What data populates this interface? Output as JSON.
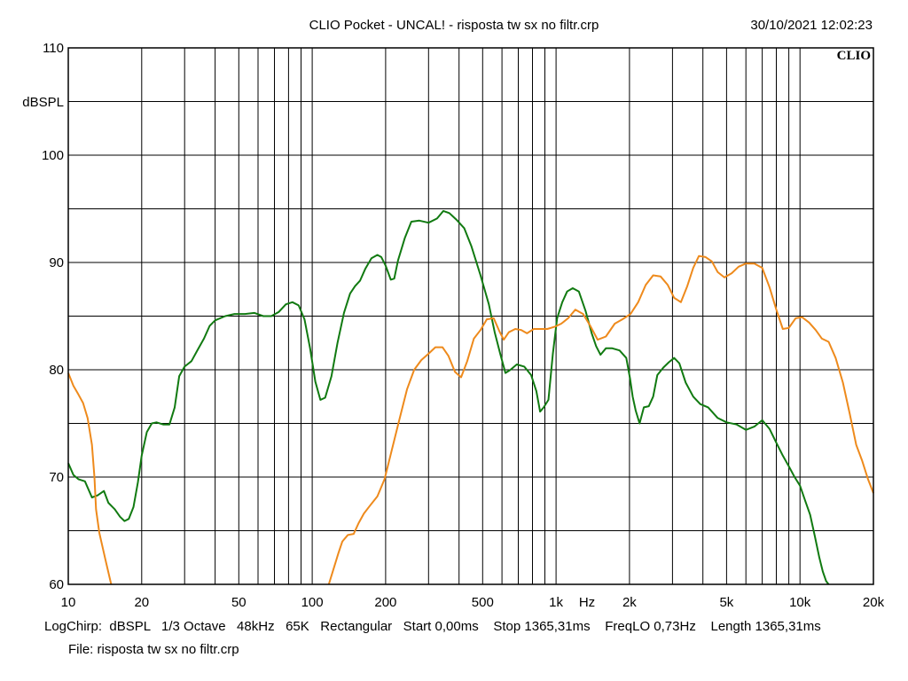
{
  "header": {
    "title": "CLIO Pocket - UNCAL! - risposta tw sx no filtr.crp",
    "datetime": "30/10/2021 12:02:23",
    "logo": "CLIO"
  },
  "footer": {
    "settings": "LogChirp:  dBSPL   1/3 Octave   48kHz   65K   Rectangular   Start 0,00ms    Stop 1365,31ms    FreqLO 0,73Hz    Length 1365,31ms",
    "file": "File: risposta tw sx no filtr.crp"
  },
  "chart_data": {
    "type": "line",
    "title": "CLIO Pocket - UNCAL! - risposta tw sx no filtr.crp",
    "xlabel": "Hz",
    "ylabel": "dBSPL",
    "x_scale": "log",
    "xlim": [
      10,
      20000
    ],
    "ylim": [
      60,
      110
    ],
    "grid": true,
    "x_ticks": [
      {
        "value": 10,
        "label": "10"
      },
      {
        "value": 20,
        "label": "20"
      },
      {
        "value": 50,
        "label": "50"
      },
      {
        "value": 100,
        "label": "100"
      },
      {
        "value": 200,
        "label": "200"
      },
      {
        "value": 500,
        "label": "500"
      },
      {
        "value": 1000,
        "label": "1k"
      },
      {
        "value": 2000,
        "label": "2k"
      },
      {
        "value": 5000,
        "label": "5k"
      },
      {
        "value": 10000,
        "label": "10k"
      },
      {
        "value": 20000,
        "label": "20k"
      }
    ],
    "y_ticks": [
      {
        "value": 110,
        "label": "110"
      },
      {
        "value": 100,
        "label": "100"
      },
      {
        "value": 90,
        "label": "90"
      },
      {
        "value": 80,
        "label": "80"
      },
      {
        "value": 70,
        "label": "70"
      },
      {
        "value": 60,
        "label": "60"
      }
    ],
    "series": [
      {
        "color": "#117a11",
        "points": [
          [
            10,
            71.3
          ],
          [
            10.5,
            70.2
          ],
          [
            11,
            69.8
          ],
          [
            11.7,
            69.6
          ],
          [
            12.5,
            68.1
          ],
          [
            13.2,
            68.3
          ],
          [
            14,
            68.7
          ],
          [
            14.6,
            67.6
          ],
          [
            15.5,
            67
          ],
          [
            16.3,
            66.3
          ],
          [
            17,
            65.9
          ],
          [
            17.7,
            66.1
          ],
          [
            18.5,
            67.2
          ],
          [
            19.3,
            69.5
          ],
          [
            20,
            72
          ],
          [
            21,
            74.2
          ],
          [
            22,
            75
          ],
          [
            23,
            75.1
          ],
          [
            24.5,
            74.9
          ],
          [
            26,
            74.9
          ],
          [
            27.3,
            76.5
          ],
          [
            28.5,
            79.4
          ],
          [
            30,
            80.3
          ],
          [
            32,
            80.8
          ],
          [
            34,
            81.9
          ],
          [
            36,
            82.9
          ],
          [
            38,
            84.1
          ],
          [
            40,
            84.6
          ],
          [
            44,
            85
          ],
          [
            48,
            85.2
          ],
          [
            53,
            85.2
          ],
          [
            58,
            85.3
          ],
          [
            63,
            85
          ],
          [
            68,
            85
          ],
          [
            73,
            85.4
          ],
          [
            78,
            86.1
          ],
          [
            83,
            86.3
          ],
          [
            88,
            86
          ],
          [
            93,
            84.7
          ],
          [
            98,
            82
          ],
          [
            103,
            78.9
          ],
          [
            108,
            77.2
          ],
          [
            113,
            77.4
          ],
          [
            120,
            79.4
          ],
          [
            127,
            82.5
          ],
          [
            135,
            85.3
          ],
          [
            143,
            87.1
          ],
          [
            150,
            87.8
          ],
          [
            157,
            88.3
          ],
          [
            165,
            89.4
          ],
          [
            175,
            90.4
          ],
          [
            185,
            90.7
          ],
          [
            192,
            90.5
          ],
          [
            200,
            89.7
          ],
          [
            210,
            88.4
          ],
          [
            217,
            88.5
          ],
          [
            225,
            90.2
          ],
          [
            240,
            92.3
          ],
          [
            255,
            93.8
          ],
          [
            275,
            93.9
          ],
          [
            300,
            93.7
          ],
          [
            325,
            94.1
          ],
          [
            345,
            94.8
          ],
          [
            365,
            94.6
          ],
          [
            390,
            94
          ],
          [
            420,
            93.2
          ],
          [
            450,
            91.5
          ],
          [
            490,
            88.8
          ],
          [
            530,
            86.1
          ],
          [
            560,
            83.5
          ],
          [
            590,
            81.5
          ],
          [
            620,
            79.7
          ],
          [
            650,
            80
          ],
          [
            690,
            80.5
          ],
          [
            740,
            80.3
          ],
          [
            790,
            79.5
          ],
          [
            830,
            78
          ],
          [
            860,
            76.1
          ],
          [
            890,
            76.5
          ],
          [
            930,
            77.2
          ],
          [
            970,
            81.5
          ],
          [
            1010,
            84.8
          ],
          [
            1060,
            86.3
          ],
          [
            1110,
            87.3
          ],
          [
            1170,
            87.6
          ],
          [
            1240,
            87.3
          ],
          [
            1320,
            85.5
          ],
          [
            1400,
            83.4
          ],
          [
            1460,
            82.2
          ],
          [
            1520,
            81.4
          ],
          [
            1600,
            82
          ],
          [
            1700,
            82
          ],
          [
            1820,
            81.8
          ],
          [
            1940,
            81.1
          ],
          [
            2010,
            79.2
          ],
          [
            2060,
            77.5
          ],
          [
            2120,
            76.2
          ],
          [
            2200,
            75
          ],
          [
            2290,
            76.5
          ],
          [
            2400,
            76.6
          ],
          [
            2500,
            77.5
          ],
          [
            2600,
            79.5
          ],
          [
            2750,
            80.2
          ],
          [
            2900,
            80.7
          ],
          [
            3050,
            81.1
          ],
          [
            3200,
            80.6
          ],
          [
            3400,
            78.8
          ],
          [
            3650,
            77.5
          ],
          [
            3900,
            76.8
          ],
          [
            4200,
            76.5
          ],
          [
            4600,
            75.5
          ],
          [
            5000,
            75.1
          ],
          [
            5500,
            74.9
          ],
          [
            6000,
            74.4
          ],
          [
            6500,
            74.7
          ],
          [
            7000,
            75.3
          ],
          [
            7500,
            74.5
          ],
          [
            8000,
            73.2
          ],
          [
            8500,
            72
          ],
          [
            9000,
            71
          ],
          [
            9500,
            70
          ],
          [
            10000,
            69.2
          ],
          [
            10500,
            67.8
          ],
          [
            11000,
            66.5
          ],
          [
            11500,
            64.5
          ],
          [
            12000,
            62.5
          ],
          [
            12400,
            61.2
          ],
          [
            12800,
            60.3
          ],
          [
            13100,
            60
          ]
        ]
      },
      {
        "color": "#ee8a1c",
        "points": [
          [
            10,
            79.7
          ],
          [
            10.5,
            78.5
          ],
          [
            11,
            77.7
          ],
          [
            11.5,
            76.9
          ],
          [
            12,
            75.5
          ],
          [
            12.5,
            73
          ],
          [
            12.8,
            70
          ],
          [
            13,
            67
          ],
          [
            13.4,
            64.8
          ],
          [
            14.2,
            62.3
          ],
          [
            15,
            60
          ]
        ]
      },
      {
        "color": "#ee8a1c",
        "points": [
          [
            117,
            60
          ],
          [
            123,
            61.6
          ],
          [
            128,
            62.9
          ],
          [
            133,
            64
          ],
          [
            140,
            64.6
          ],
          [
            148,
            64.7
          ],
          [
            155,
            65.7
          ],
          [
            163,
            66.6
          ],
          [
            172,
            67.3
          ],
          [
            185,
            68.2
          ],
          [
            198,
            69.8
          ],
          [
            212,
            72.5
          ],
          [
            228,
            75.4
          ],
          [
            245,
            78.2
          ],
          [
            262,
            80
          ],
          [
            280,
            80.9
          ],
          [
            300,
            81.5
          ],
          [
            320,
            82.1
          ],
          [
            342,
            82.1
          ],
          [
            362,
            81.3
          ],
          [
            385,
            79.8
          ],
          [
            408,
            79.3
          ],
          [
            432,
            80.8
          ],
          [
            460,
            82.9
          ],
          [
            490,
            83.7
          ],
          [
            520,
            84.7
          ],
          [
            555,
            84.8
          ],
          [
            585,
            83.6
          ],
          [
            610,
            82.8
          ],
          [
            640,
            83.5
          ],
          [
            680,
            83.8
          ],
          [
            720,
            83.7
          ],
          [
            760,
            83.4
          ],
          [
            810,
            83.8
          ],
          [
            860,
            83.8
          ],
          [
            920,
            83.8
          ],
          [
            985,
            84
          ],
          [
            1050,
            84.3
          ],
          [
            1120,
            84.8
          ],
          [
            1200,
            85.6
          ],
          [
            1290,
            85.2
          ],
          [
            1380,
            84.1
          ],
          [
            1480,
            82.8
          ],
          [
            1600,
            83.1
          ],
          [
            1740,
            84.3
          ],
          [
            1870,
            84.7
          ],
          [
            2020,
            85.2
          ],
          [
            2170,
            86.3
          ],
          [
            2330,
            87.9
          ],
          [
            2500,
            88.8
          ],
          [
            2680,
            88.7
          ],
          [
            2870,
            87.9
          ],
          [
            3050,
            86.7
          ],
          [
            3250,
            86.3
          ],
          [
            3450,
            87.8
          ],
          [
            3650,
            89.5
          ],
          [
            3850,
            90.6
          ],
          [
            4100,
            90.5
          ],
          [
            4350,
            90.1
          ],
          [
            4600,
            89.1
          ],
          [
            4900,
            88.6
          ],
          [
            5250,
            89
          ],
          [
            5600,
            89.6
          ],
          [
            6000,
            89.9
          ],
          [
            6500,
            89.9
          ],
          [
            7000,
            89.5
          ],
          [
            7500,
            87.7
          ],
          [
            8000,
            85.6
          ],
          [
            8500,
            83.8
          ],
          [
            9000,
            83.9
          ],
          [
            9600,
            84.8
          ],
          [
            10200,
            84.9
          ],
          [
            10900,
            84.4
          ],
          [
            11600,
            83.7
          ],
          [
            12300,
            82.9
          ],
          [
            13100,
            82.6
          ],
          [
            14000,
            81.1
          ],
          [
            15000,
            78.8
          ],
          [
            16000,
            75.9
          ],
          [
            17000,
            73
          ],
          [
            18000,
            71.5
          ],
          [
            19000,
            69.8
          ],
          [
            20000,
            68.5
          ]
        ]
      }
    ]
  }
}
